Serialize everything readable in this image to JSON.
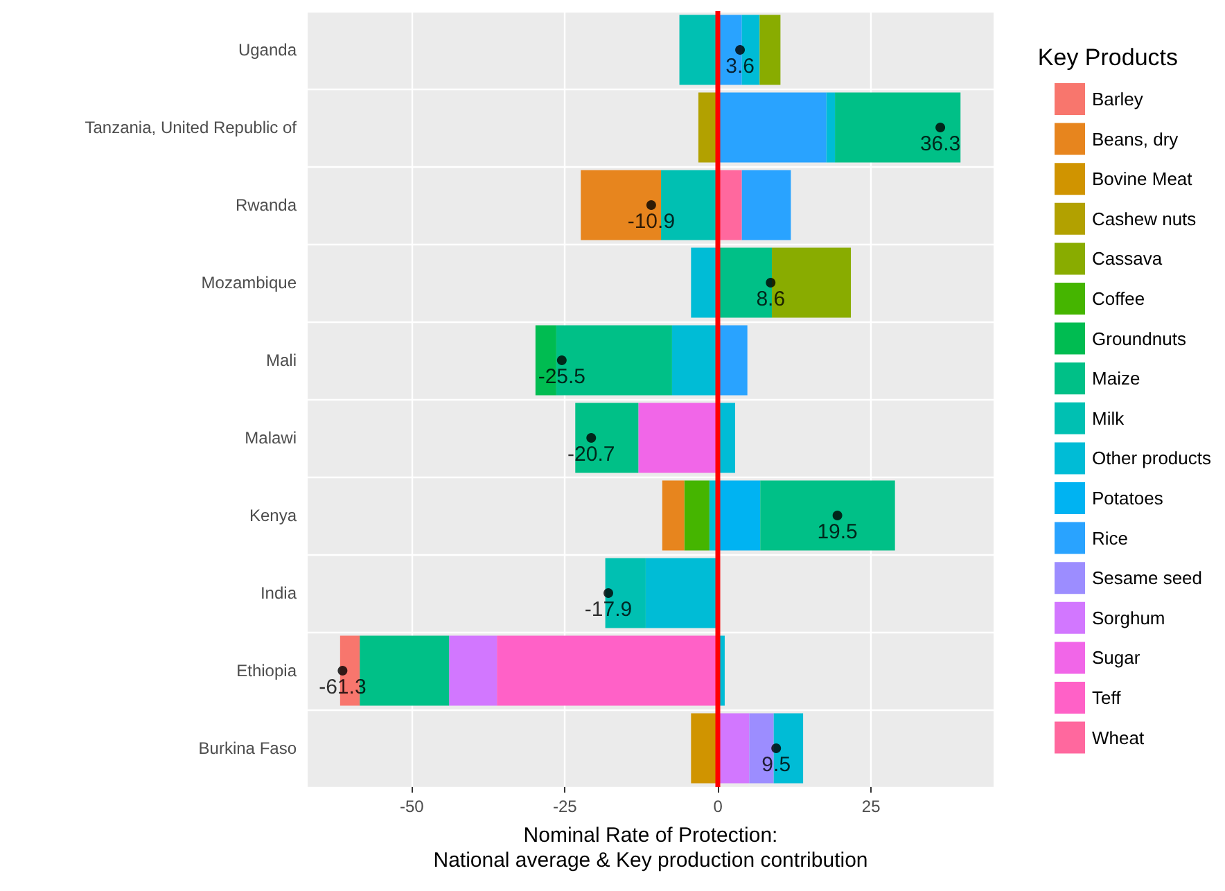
{
  "chart_data": {
    "type": "bar",
    "orientation": "horizontal",
    "stacked": true,
    "categories": [
      "Uganda",
      "Tanzania, United Republic of",
      "Rwanda",
      "Mozambique",
      "Mali",
      "Malawi",
      "Kenya",
      "India",
      "Ethiopia",
      "Burkina Faso"
    ],
    "series": [
      {
        "name": "Wheat",
        "color": "#ff689e",
        "values": [
          null,
          null,
          3.9,
          null,
          null,
          null,
          null,
          null,
          null,
          null
        ]
      },
      {
        "name": "Teff",
        "color": "#ff61c7",
        "values": [
          null,
          null,
          null,
          null,
          null,
          null,
          null,
          null,
          -36.1,
          null
        ]
      },
      {
        "name": "Sugar",
        "color": "#f166e8",
        "values": [
          null,
          null,
          null,
          null,
          null,
          -13.0,
          null,
          null,
          null,
          null
        ]
      },
      {
        "name": "Sorghum",
        "color": "#d277ff",
        "values": [
          null,
          null,
          null,
          null,
          null,
          null,
          null,
          null,
          -7.8,
          5.1
        ]
      },
      {
        "name": "Sesame seed",
        "color": "#9c8dff",
        "values": [
          null,
          null,
          null,
          null,
          null,
          null,
          null,
          null,
          null,
          4.0
        ]
      },
      {
        "name": "Rice",
        "color": "#29a3ff",
        "values": [
          3.9,
          17.7,
          8.0,
          null,
          4.8,
          null,
          null,
          null,
          null,
          null
        ]
      },
      {
        "name": "Potatoes",
        "color": "#00b3f2",
        "values": [
          null,
          null,
          null,
          null,
          null,
          null,
          6.9,
          null,
          null,
          null
        ]
      },
      {
        "name": "Other products",
        "color": "#00bcd6",
        "values": [
          2.9,
          1.4,
          null,
          -4.4,
          -7.5,
          2.8,
          -1.4,
          -11.8,
          1.1,
          4.8
        ]
      },
      {
        "name": "Milk",
        "color": "#00c0b2",
        "values": [
          -6.3,
          null,
          -9.3,
          null,
          null,
          null,
          null,
          -6.6,
          null,
          null
        ]
      },
      {
        "name": "Maize",
        "color": "#00c087",
        "values": [
          null,
          20.5,
          null,
          8.8,
          -18.9,
          -10.3,
          22.0,
          null,
          -14.6,
          null
        ]
      },
      {
        "name": "Groundnuts",
        "color": "#00bc51",
        "values": [
          null,
          null,
          null,
          null,
          -3.4,
          null,
          null,
          null,
          null,
          null
        ]
      },
      {
        "name": "Coffee",
        "color": "#45b500",
        "values": [
          null,
          null,
          null,
          null,
          null,
          null,
          -4.1,
          null,
          null,
          null
        ]
      },
      {
        "name": "Cassava",
        "color": "#89ac00",
        "values": [
          3.4,
          null,
          null,
          12.9,
          null,
          null,
          null,
          null,
          null,
          null
        ]
      },
      {
        "name": "Cashew nuts",
        "color": "#b2a100",
        "values": [
          null,
          -3.2,
          null,
          null,
          null,
          null,
          null,
          null,
          null,
          null
        ]
      },
      {
        "name": "Bovine Meat",
        "color": "#d09400",
        "values": [
          null,
          null,
          null,
          null,
          null,
          null,
          null,
          null,
          null,
          -4.4
        ]
      },
      {
        "name": "Beans, dry",
        "color": "#e7851e",
        "values": [
          null,
          null,
          -13.1,
          null,
          null,
          null,
          -3.6,
          null,
          null,
          null
        ]
      },
      {
        "name": "Barley",
        "color": "#f8766d",
        "values": [
          null,
          null,
          null,
          null,
          null,
          null,
          null,
          null,
          -3.2,
          null
        ]
      },
      {
        "type": "scatter",
        "color": "#000000",
        "values": [
          3.6,
          36.3,
          -10.9,
          8.6,
          -25.5,
          -20.7,
          19.5,
          -17.9,
          -61.3,
          9.5
        ],
        "value_labels": [
          "3.6",
          "36.3",
          "-10.9",
          "8.6",
          "-25.5",
          "-20.7",
          "19.5",
          "-17.9",
          "-61.3",
          "9.5"
        ]
      }
    ],
    "ref_lines": [
      {
        "axis": "x",
        "value": 0,
        "color": "#ff0000"
      }
    ],
    "xlim": [
      -67,
      45
    ],
    "xticks": [
      -50,
      -25,
      0,
      25
    ],
    "xlabel": "Nominal Rate of Protection:\nNational average & Key production contribution",
    "legend_title": "Key Products",
    "legend": "right",
    "grid": true
  }
}
